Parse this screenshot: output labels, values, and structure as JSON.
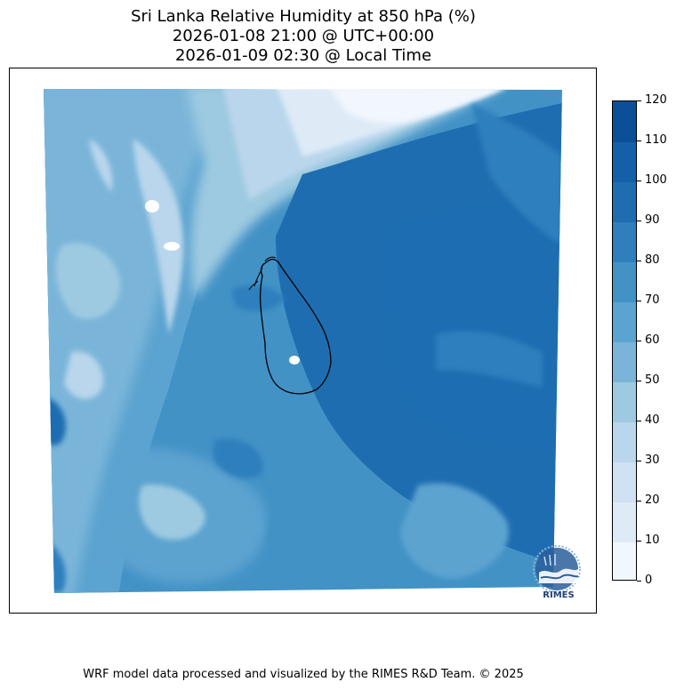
{
  "title": {
    "line1": "Sri Lanka Relative Humidity at 850 hPa (%)",
    "line2": "2026-01-08 21:00 @ UTC+00:00",
    "line3": "2026-01-09 02:30 @ Local Time"
  },
  "colorbar": {
    "ticks": [
      "0",
      "10",
      "20",
      "30",
      "40",
      "50",
      "60",
      "70",
      "80",
      "90",
      "100",
      "110",
      "120"
    ],
    "colors": [
      "#f2f7fd",
      "#deebf7",
      "#cfe1f2",
      "#b9d6ec",
      "#9ecae1",
      "#7ab5d9",
      "#5ba3d0",
      "#4292c6",
      "#2f7fbd",
      "#1f6db1",
      "#1460a8",
      "#0b4f98",
      "#08306b"
    ]
  },
  "logo": {
    "text": "RIMES",
    "name": "rimes-logo-icon"
  },
  "footer": "WRF model data processed and visualized by the RIMES R&D Team. © 2025"
}
